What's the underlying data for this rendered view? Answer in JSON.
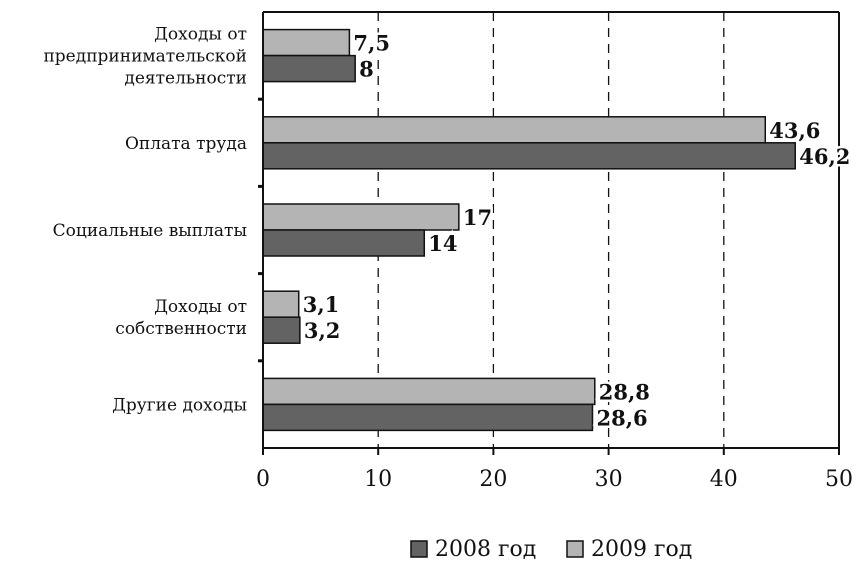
{
  "chart_data": {
    "type": "bar",
    "orientation": "horizontal",
    "categories": [
      [
        "Доходы от",
        "предпринимательской",
        "деятельности"
      ],
      [
        "Оплата труда"
      ],
      [
        "Социальные выплаты"
      ],
      [
        "Доходы от",
        "собственности"
      ],
      [
        "Другие доходы"
      ]
    ],
    "series": [
      {
        "name": "2009 год",
        "values": [
          7.5,
          43.6,
          17,
          3.1,
          28.8
        ],
        "labels": [
          "7,5",
          "43,6",
          "17",
          "3,1",
          "28,8"
        ],
        "color": "#b4b4b4"
      },
      {
        "name": "2008 год",
        "values": [
          8,
          46.2,
          14,
          3.2,
          28.6
        ],
        "labels": [
          "8",
          "46,2",
          "14",
          "3,2",
          "28,6"
        ],
        "color": "#636363"
      }
    ],
    "x_ticks": [
      "0",
      "10",
      "20",
      "30",
      "40",
      "50"
    ],
    "xlim": [
      0,
      50
    ],
    "grid": "vertical dashed",
    "legend": {
      "placement": "bottom",
      "entries": [
        {
          "name": "2008 год",
          "color": "#636363"
        },
        {
          "name": "2009 год",
          "color": "#b4b4b4"
        }
      ]
    }
  }
}
